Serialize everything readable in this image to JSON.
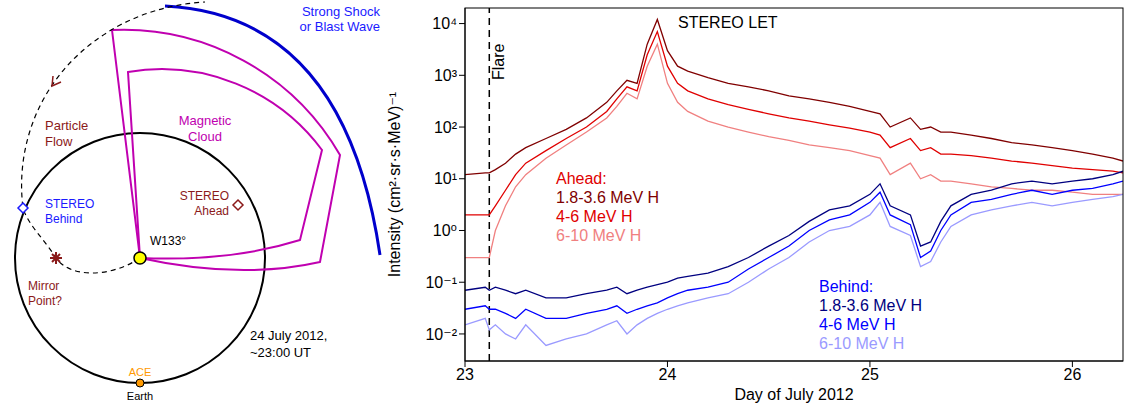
{
  "diagram": {
    "shock": "Strong Shock or Blast Wave",
    "particle_flow": "Particle Flow",
    "magnetic_cloud": "Magnetic Cloud",
    "stereo_behind": "STEREO Behind",
    "stereo_ahead": "STEREO Ahead",
    "longitude": "W133°",
    "mirror_point": "Mirror Point?",
    "date": "24 July 2012, ~23:00 UT",
    "ace": "ACE",
    "earth": "Earth"
  },
  "chart_data": {
    "type": "line",
    "title": "STEREO LET",
    "x_label": "Day of July 2012",
    "y_label": "Intensity (cm²·sr·s·MeV)⁻¹",
    "log": "y",
    "xlim": [
      23,
      26.25
    ],
    "xticks": [
      23,
      24,
      25,
      26
    ],
    "ylim": [
      0.003,
      20000
    ],
    "yticks": [
      {
        "value": 0.01,
        "label": "10⁻²"
      },
      {
        "value": 0.1,
        "label": "10⁻¹"
      },
      {
        "value": 1,
        "label": "10⁰"
      },
      {
        "value": 10,
        "label": "10¹"
      },
      {
        "value": 100,
        "label": "10²"
      },
      {
        "value": 1000,
        "label": "10³"
      },
      {
        "value": 10000,
        "label": "10⁴"
      }
    ],
    "annotations": [
      {
        "text": "Flare",
        "x": 23.12,
        "line_style": "dashed"
      }
    ],
    "x": [
      23.0,
      23.1,
      23.12,
      23.15,
      23.2,
      23.25,
      23.3,
      23.4,
      23.5,
      23.6,
      23.7,
      23.75,
      23.8,
      23.85,
      23.9,
      23.95,
      24.0,
      24.05,
      24.1,
      24.2,
      24.3,
      24.4,
      24.5,
      24.6,
      24.7,
      24.8,
      24.9,
      25.0,
      25.05,
      25.1,
      25.2,
      25.25,
      25.3,
      25.35,
      25.4,
      25.5,
      25.6,
      25.7,
      25.8,
      25.9,
      26.0,
      26.1,
      26.2,
      26.25
    ],
    "groups": [
      {
        "title": "Ahead:",
        "series": [
          {
            "name": "1.8-3.6 MeV H",
            "color": "#800000",
            "values": [
              12,
              13,
              13,
              15,
              20,
              30,
              40,
              60,
              90,
              150,
              300,
              500,
              800,
              700,
              4000,
              12000,
              3000,
              1500,
              1200,
              900,
              700,
              600,
              500,
              400,
              350,
              300,
              250,
              200,
              180,
              100,
              150,
              90,
              100,
              80,
              80,
              70,
              60,
              50,
              45,
              40,
              35,
              30,
              25,
              22
            ]
          },
          {
            "name": "4-6 MeV H",
            "color": "#e00000",
            "values": [
              2,
              2,
              2,
              3,
              6,
              12,
              20,
              35,
              60,
              100,
              200,
              350,
              600,
              500,
              2500,
              7000,
              1500,
              700,
              500,
              350,
              270,
              220,
              180,
              150,
              130,
              110,
              95,
              80,
              70,
              40,
              60,
              35,
              40,
              30,
              30,
              28,
              25,
              22,
              20,
              18,
              16,
              15,
              14,
              13
            ]
          },
          {
            "name": "6-10 MeV H",
            "color": "#f08080",
            "values": [
              0.3,
              0.3,
              0.3,
              1,
              3,
              7,
              12,
              25,
              45,
              80,
              150,
              250,
              450,
              350,
              1500,
              4000,
              700,
              300,
              200,
              130,
              100,
              80,
              65,
              55,
              45,
              40,
              35,
              28,
              25,
              12,
              20,
              10,
              12,
              9,
              9,
              8,
              7,
              6.5,
              6,
              6,
              5.5,
              5,
              5,
              5
            ]
          }
        ]
      },
      {
        "title": "Behind:",
        "series": [
          {
            "name": "1.8-3.6 MeV H",
            "color": "#000080",
            "values": [
              0.07,
              0.08,
              0.07,
              0.08,
              0.07,
              0.06,
              0.07,
              0.05,
              0.05,
              0.06,
              0.07,
              0.08,
              0.06,
              0.07,
              0.08,
              0.09,
              0.1,
              0.12,
              0.13,
              0.15,
              0.2,
              0.3,
              0.5,
              0.8,
              1.5,
              2.5,
              3,
              5,
              8,
              3,
              2,
              0.5,
              0.6,
              1.5,
              3,
              5,
              6,
              8,
              9,
              8,
              9,
              10,
              12,
              14
            ]
          },
          {
            "name": "4-6 MeV H",
            "color": "#0000ff",
            "values": [
              0.03,
              0.035,
              0.03,
              0.03,
              0.025,
              0.02,
              0.03,
              0.02,
              0.02,
              0.025,
              0.03,
              0.035,
              0.025,
              0.03,
              0.035,
              0.04,
              0.05,
              0.06,
              0.07,
              0.08,
              0.1,
              0.18,
              0.3,
              0.5,
              1,
              1.6,
              2,
              3.5,
              5.5,
              2,
              1.3,
              0.3,
              0.4,
              1,
              2,
              3.5,
              4,
              5,
              6,
              5,
              6,
              6.5,
              8,
              9
            ]
          },
          {
            "name": "6-10 MeV H",
            "color": "#9a9aff",
            "values": [
              0.015,
              0.02,
              0.012,
              0.015,
              0.01,
              0.008,
              0.015,
              0.006,
              0.008,
              0.01,
              0.015,
              0.018,
              0.01,
              0.015,
              0.02,
              0.025,
              0.03,
              0.035,
              0.04,
              0.05,
              0.06,
              0.1,
              0.18,
              0.3,
              0.6,
              1,
              1.2,
              2,
              3.5,
              1.2,
              0.8,
              0.2,
              0.25,
              0.6,
              1.2,
              2,
              2.5,
              3,
              3.5,
              3,
              3.5,
              4,
              4.5,
              5
            ]
          }
        ]
      }
    ]
  }
}
